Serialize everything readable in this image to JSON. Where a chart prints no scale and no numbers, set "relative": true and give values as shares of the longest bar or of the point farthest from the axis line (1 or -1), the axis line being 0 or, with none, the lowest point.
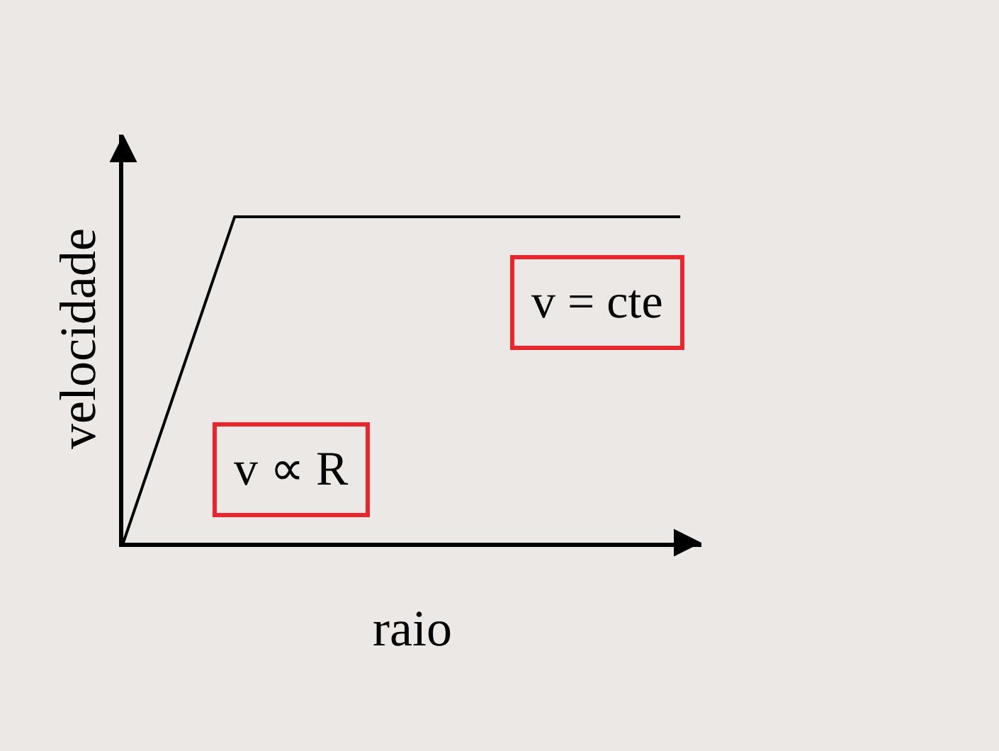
{
  "chart_data": {
    "type": "line",
    "relative": true,
    "xlabel": "raio",
    "ylabel": "velocidade",
    "categories": [
      null,
      null,
      null,
      null,
      null,
      null
    ],
    "series": [
      {
        "color": "#000000",
        "values": [
          0,
          1,
          1,
          1,
          1,
          1
        ]
      }
    ],
    "annotations": [
      "v = cte",
      "v ∝ R"
    ],
    "grid": false,
    "marker": "none",
    "line_style": "solid"
  }
}
